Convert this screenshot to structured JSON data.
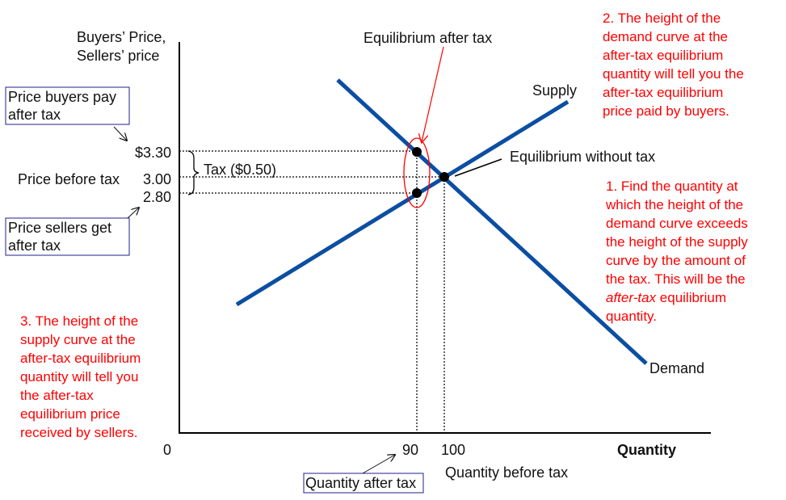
{
  "colors": {
    "curve": "#0b4ea2",
    "note": "#ff0000",
    "box_border": "#1f1f8f",
    "text": "#111111"
  },
  "axes": {
    "ylabel_lines": [
      "Buyers’ Price,",
      "Sellers’ price"
    ],
    "xlabel": "Quantity",
    "origin": "0"
  },
  "curves": {
    "supply_label": "Supply",
    "demand_label": "Demand"
  },
  "price_ticks": {
    "buyers": "$3.30",
    "before": "3.00",
    "sellers": "2.80"
  },
  "quantity_ticks": {
    "after": "90",
    "before": "100"
  },
  "labels": {
    "price_before_tax": "Price before tax",
    "tax": "Tax ($0.50)",
    "quantity_before_tax": "Quantity before tax",
    "equilibrium_after_tax": "Equilibrium after tax",
    "equilibrium_without_tax": "Equilibrium without tax"
  },
  "boxes": {
    "price_buyers_pay": [
      "Price buyers pay",
      "after tax"
    ],
    "price_sellers_get": [
      "Price sellers get",
      "after tax"
    ],
    "quantity_after_tax": "Quantity after tax"
  },
  "notes": {
    "note1_before": [
      "1. Find the quantity at",
      "which the height of the",
      "demand curve exceeds",
      "the height of the supply",
      "curve by the amount of",
      "the tax. This will be the"
    ],
    "note1_italic": "after-tax",
    "note1_after_italic": " equilibrium",
    "note1_last": "quantity.",
    "note2": [
      "2. The height of the",
      "demand curve at the",
      "after-tax equilibrium",
      "quantity will tell you the",
      "after-tax equilibrium",
      "price paid by buyers."
    ],
    "note3": [
      "3. The height of the",
      "supply curve at the",
      "after-tax equilibrium",
      "quantity will tell you",
      "the after-tax",
      "equilibrium price",
      "received by sellers."
    ]
  },
  "chart_data": {
    "type": "line",
    "equilibrium_without_tax": {
      "quantity": 100,
      "price": 3.0
    },
    "equilibrium_after_tax": {
      "quantity": 90,
      "buyers_price": 3.3,
      "sellers_price": 2.8
    },
    "tax": 0.5
  }
}
